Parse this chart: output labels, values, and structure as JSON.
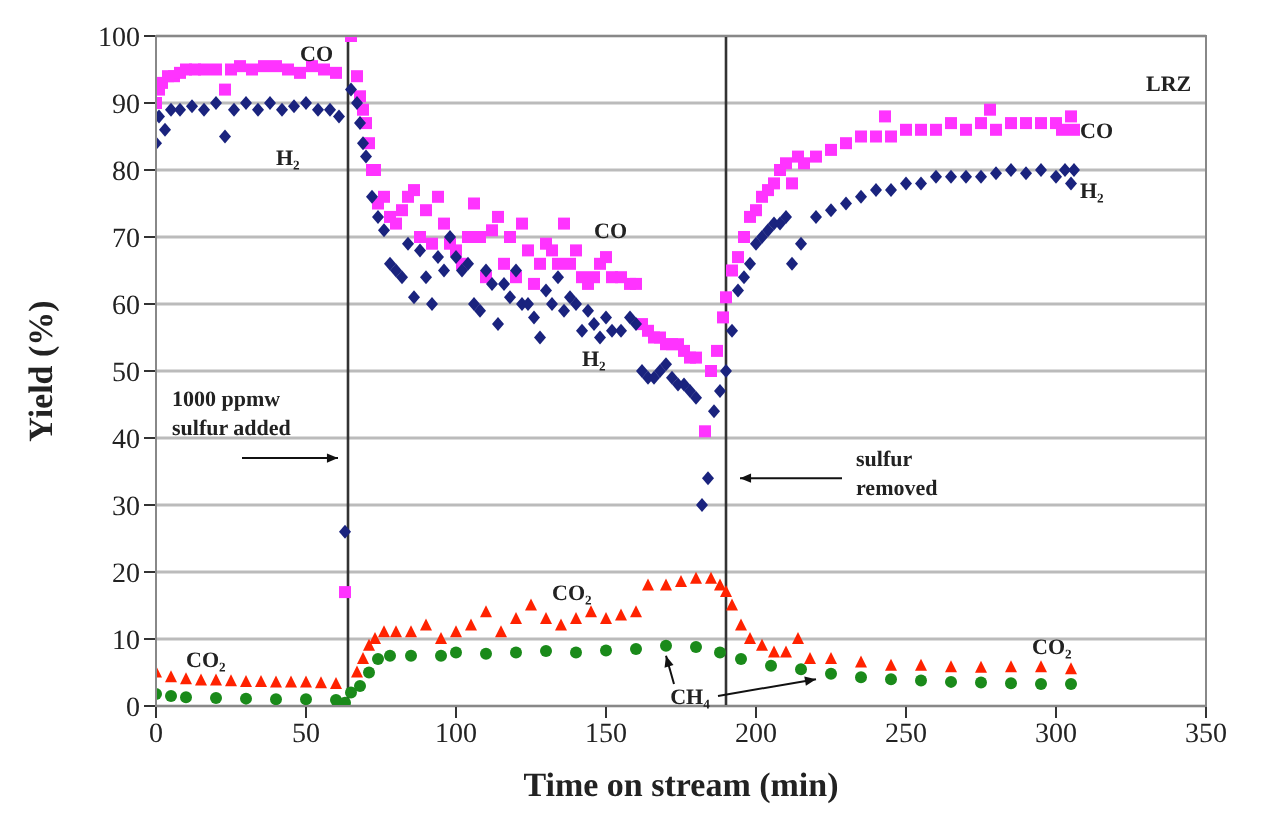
{
  "chart_data": {
    "type": "scatter",
    "xlabel": "Time on stream (min)",
    "ylabel": "Yield (%)",
    "xlim": [
      0,
      350
    ],
    "xticks": [
      0,
      50,
      100,
      150,
      200,
      250,
      300,
      350
    ],
    "ylim": [
      0,
      100
    ],
    "yticks": [
      0,
      10,
      20,
      30,
      40,
      50,
      60,
      70,
      80,
      90,
      100
    ],
    "grid": "y",
    "legend": false,
    "ref_lines": [
      {
        "axis": "x",
        "value": 64,
        "label": null,
        "color": "#333333"
      },
      {
        "axis": "x",
        "value": 190,
        "label": null,
        "color": "#333333"
      }
    ],
    "annotations": [
      {
        "text": "1000 ppmw\nsulfur added",
        "x": 62,
        "y": 37
      },
      {
        "text": "sulfur\nremoved",
        "x": 192,
        "y": 34
      },
      "LRZ",
      "CO",
      "H₂",
      "CO",
      "H₂",
      "CO",
      "H₂",
      "CO₂",
      "CO₂",
      "CO₂",
      "CH₄"
    ],
    "series": [
      {
        "color": "#ff33ff",
        "marker": "square",
        "x": [
          0,
          1,
          2,
          4,
          6,
          8,
          10,
          13,
          16,
          20,
          23,
          25,
          28,
          32,
          36,
          40,
          44,
          48,
          52,
          56,
          60,
          63,
          65,
          67,
          68,
          69,
          70,
          71,
          72,
          73,
          74,
          76,
          78,
          80,
          82,
          84,
          86,
          88,
          90,
          92,
          94,
          96,
          98,
          100,
          102,
          104,
          106,
          108,
          110,
          112,
          114,
          116,
          118,
          120,
          122,
          124,
          126,
          128,
          130,
          132,
          134,
          136,
          138,
          140,
          142,
          144,
          146,
          148,
          150,
          152,
          155,
          158,
          160,
          162,
          164,
          166,
          168,
          170,
          172,
          174,
          176,
          178,
          180,
          183,
          185,
          187,
          189,
          190,
          192,
          194,
          196,
          198,
          200,
          202,
          204,
          206,
          208,
          210,
          212,
          214,
          216,
          220,
          225,
          230,
          235,
          240,
          243,
          245,
          250,
          255,
          260,
          265,
          270,
          275,
          278,
          280,
          285,
          290,
          295,
          300,
          302,
          305,
          306
        ],
        "values": [
          90,
          92,
          93,
          94,
          94,
          94.5,
          95,
          95,
          95,
          95,
          92,
          95,
          95.5,
          95,
          95.5,
          95.5,
          95,
          94.5,
          95.5,
          95,
          94.5,
          17,
          100,
          94,
          91,
          89,
          87,
          84,
          80,
          80,
          75,
          76,
          73,
          72,
          74,
          76,
          77,
          70,
          74,
          69,
          76,
          72,
          69,
          68,
          66,
          70,
          75,
          70,
          64,
          71,
          73,
          66,
          70,
          64,
          72,
          68,
          63,
          66,
          69,
          68,
          66,
          72,
          66,
          68,
          64,
          63,
          64,
          66,
          67,
          64,
          64,
          63,
          63,
          57,
          56,
          55,
          55,
          54,
          54,
          54,
          53,
          52,
          52,
          41,
          50,
          53,
          58,
          61,
          65,
          67,
          70,
          73,
          74,
          76,
          77,
          78,
          80,
          81,
          78,
          82,
          81,
          82,
          83,
          84,
          85,
          85,
          88,
          85,
          86,
          86,
          86,
          87,
          86,
          87,
          89,
          86,
          87,
          87,
          87,
          87,
          86,
          88,
          86
        ]
      },
      {
        "color": "#1a237e",
        "marker": "diamond",
        "x": [
          0,
          1,
          3,
          5,
          8,
          12,
          16,
          20,
          23,
          26,
          30,
          34,
          38,
          42,
          46,
          50,
          54,
          58,
          61,
          63,
          65,
          67,
          68,
          69,
          70,
          72,
          74,
          76,
          78,
          80,
          82,
          84,
          86,
          88,
          90,
          92,
          94,
          96,
          98,
          100,
          102,
          104,
          106,
          108,
          110,
          112,
          114,
          116,
          118,
          120,
          122,
          124,
          126,
          128,
          130,
          132,
          134,
          136,
          138,
          140,
          142,
          144,
          146,
          148,
          150,
          152,
          155,
          158,
          160,
          162,
          164,
          166,
          168,
          170,
          172,
          174,
          176,
          178,
          180,
          182,
          184,
          186,
          188,
          190,
          192,
          194,
          196,
          198,
          200,
          202,
          204,
          206,
          208,
          210,
          212,
          215,
          220,
          225,
          230,
          235,
          240,
          245,
          250,
          255,
          260,
          265,
          270,
          275,
          280,
          285,
          290,
          295,
          300,
          303,
          305,
          306
        ],
        "values": [
          84,
          88,
          86,
          89,
          89,
          89.5,
          89,
          90,
          85,
          89,
          90,
          89,
          90,
          89,
          89.5,
          90,
          89,
          89,
          88,
          26,
          92,
          90,
          87,
          84,
          82,
          76,
          73,
          71,
          66,
          65,
          64,
          69,
          61,
          68,
          64,
          60,
          67,
          65,
          70,
          67,
          65,
          66,
          60,
          59,
          65,
          63,
          57,
          63,
          61,
          65,
          60,
          60,
          58,
          55,
          62,
          60,
          64,
          59,
          61,
          60,
          56,
          59,
          57,
          55,
          58,
          56,
          56,
          58,
          57,
          50,
          49,
          49,
          50,
          51,
          49,
          48,
          48,
          47,
          46,
          30,
          34,
          44,
          47,
          50,
          56,
          62,
          64,
          66,
          69,
          70,
          71,
          72,
          72,
          73,
          66,
          69,
          73,
          74,
          75,
          76,
          77,
          77,
          78,
          78,
          79,
          79,
          79,
          79,
          79.5,
          80,
          79.5,
          80,
          79,
          80,
          78,
          80
        ]
      },
      {
        "color": "#ff2200",
        "marker": "triangle",
        "x": [
          0,
          5,
          10,
          15,
          20,
          25,
          30,
          35,
          40,
          45,
          50,
          55,
          60,
          65,
          67,
          69,
          71,
          73,
          76,
          80,
          85,
          90,
          95,
          100,
          105,
          110,
          115,
          120,
          125,
          130,
          135,
          140,
          145,
          150,
          155,
          160,
          164,
          170,
          175,
          180,
          185,
          188,
          190,
          192,
          195,
          198,
          202,
          206,
          210,
          214,
          218,
          225,
          235,
          245,
          255,
          265,
          275,
          285,
          295,
          305
        ],
        "values": [
          5,
          4.3,
          4,
          3.8,
          3.8,
          3.7,
          3.6,
          3.6,
          3.5,
          3.5,
          3.5,
          3.4,
          3.3,
          null,
          5,
          7,
          9,
          10,
          11,
          11,
          11,
          12,
          10,
          11,
          12,
          14,
          11,
          13,
          15,
          13,
          12,
          13,
          14,
          13,
          13.5,
          14,
          18,
          18,
          18.5,
          19,
          19,
          18,
          17,
          15,
          12,
          10,
          9,
          8,
          8,
          10,
          7,
          7,
          6.5,
          6,
          6,
          5.8,
          5.7,
          5.8,
          5.8,
          5.5
        ]
      },
      {
        "color": "#1a8a1a",
        "marker": "circle",
        "x": [
          0,
          5,
          10,
          20,
          30,
          40,
          50,
          60,
          63,
          65,
          68,
          71,
          74,
          78,
          85,
          95,
          100,
          110,
          120,
          130,
          140,
          150,
          160,
          170,
          180,
          188,
          195,
          205,
          215,
          225,
          235,
          245,
          255,
          265,
          275,
          285,
          295,
          305
        ],
        "values": [
          1.8,
          1.5,
          1.3,
          1.2,
          1.1,
          1,
          1,
          0.9,
          0.5,
          2,
          3,
          5,
          7,
          7.5,
          7.5,
          7.5,
          8,
          7.8,
          8,
          8.2,
          8,
          8.3,
          8.5,
          9,
          8.8,
          8,
          7,
          6,
          5.5,
          4.8,
          4.3,
          4,
          3.8,
          3.6,
          3.5,
          3.4,
          3.3,
          3.3
        ]
      }
    ]
  }
}
